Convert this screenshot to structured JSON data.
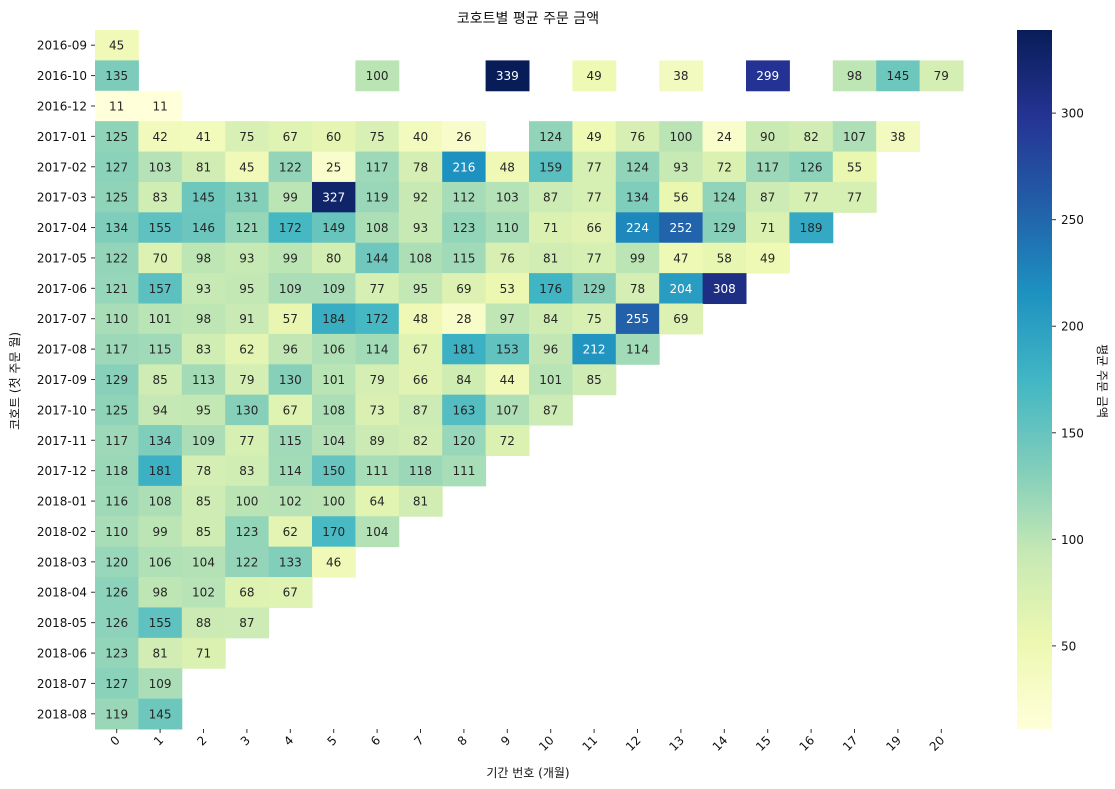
{
  "chart_data": {
    "type": "heatmap",
    "title": "코호트별 평균 주문 금액",
    "xlabel": "기간 번호 (개월)",
    "ylabel": "코호트 (첫 주문 월)",
    "colorbar_label": "평균 주문 금액",
    "colormap": "YlGnBu",
    "value_range": [
      11,
      339
    ],
    "colorbar_ticks": [
      50,
      100,
      150,
      200,
      250,
      300
    ],
    "x": [
      "0",
      "1",
      "2",
      "3",
      "4",
      "5",
      "6",
      "7",
      "8",
      "9",
      "10",
      "11",
      "12",
      "13",
      "14",
      "15",
      "16",
      "17",
      "19",
      "20"
    ],
    "y": [
      "2016-09",
      "2016-10",
      "2016-12",
      "2017-01",
      "2017-02",
      "2017-03",
      "2017-04",
      "2017-05",
      "2017-06",
      "2017-07",
      "2017-08",
      "2017-09",
      "2017-10",
      "2017-11",
      "2017-12",
      "2018-01",
      "2018-02",
      "2018-03",
      "2018-04",
      "2018-05",
      "2018-06",
      "2018-07",
      "2018-08"
    ],
    "values": [
      [
        45,
        null,
        null,
        null,
        null,
        null,
        null,
        null,
        null,
        null,
        null,
        null,
        null,
        null,
        null,
        null,
        null,
        null,
        null,
        null
      ],
      [
        135,
        null,
        null,
        null,
        null,
        null,
        100,
        null,
        null,
        339,
        null,
        49,
        null,
        38,
        null,
        299,
        null,
        98,
        145,
        79
      ],
      [
        11,
        11,
        null,
        null,
        null,
        null,
        null,
        null,
        null,
        null,
        null,
        null,
        null,
        null,
        null,
        null,
        null,
        null,
        null,
        null
      ],
      [
        125,
        42,
        41,
        75,
        67,
        60,
        75,
        40,
        26,
        null,
        124,
        49,
        76,
        100,
        24,
        90,
        82,
        107,
        38,
        null
      ],
      [
        127,
        103,
        81,
        45,
        122,
        25,
        117,
        78,
        216,
        48,
        159,
        77,
        124,
        93,
        72,
        117,
        126,
        55,
        null,
        null
      ],
      [
        125,
        83,
        145,
        131,
        99,
        327,
        119,
        92,
        112,
        103,
        87,
        77,
        134,
        56,
        124,
        87,
        77,
        77,
        null,
        null
      ],
      [
        134,
        155,
        146,
        121,
        172,
        149,
        108,
        93,
        123,
        110,
        71,
        66,
        224,
        252,
        129,
        71,
        189,
        null,
        null,
        null
      ],
      [
        122,
        70,
        98,
        93,
        99,
        80,
        144,
        108,
        115,
        76,
        81,
        77,
        99,
        47,
        58,
        49,
        null,
        null,
        null,
        null
      ],
      [
        121,
        157,
        93,
        95,
        109,
        109,
        77,
        95,
        69,
        53,
        176,
        129,
        78,
        204,
        308,
        null,
        null,
        null,
        null,
        null
      ],
      [
        110,
        101,
        98,
        91,
        57,
        184,
        172,
        48,
        28,
        97,
        84,
        75,
        255,
        69,
        null,
        null,
        null,
        null,
        null,
        null
      ],
      [
        117,
        115,
        83,
        62,
        96,
        106,
        114,
        67,
        181,
        153,
        96,
        212,
        114,
        null,
        null,
        null,
        null,
        null,
        null,
        null
      ],
      [
        129,
        85,
        113,
        79,
        130,
        101,
        79,
        66,
        84,
        44,
        101,
        85,
        null,
        null,
        null,
        null,
        null,
        null,
        null,
        null
      ],
      [
        125,
        94,
        95,
        130,
        67,
        108,
        73,
        87,
        163,
        107,
        87,
        null,
        null,
        null,
        null,
        null,
        null,
        null,
        null,
        null
      ],
      [
        117,
        134,
        109,
        77,
        115,
        104,
        89,
        82,
        120,
        72,
        null,
        null,
        null,
        null,
        null,
        null,
        null,
        null,
        null,
        null
      ],
      [
        118,
        181,
        78,
        83,
        114,
        150,
        111,
        118,
        111,
        null,
        null,
        null,
        null,
        null,
        null,
        null,
        null,
        null,
        null,
        null
      ],
      [
        116,
        108,
        85,
        100,
        102,
        100,
        64,
        81,
        null,
        null,
        null,
        null,
        null,
        null,
        null,
        null,
        null,
        null,
        null,
        null
      ],
      [
        110,
        99,
        85,
        123,
        62,
        170,
        104,
        null,
        null,
        null,
        null,
        null,
        null,
        null,
        null,
        null,
        null,
        null,
        null,
        null
      ],
      [
        120,
        106,
        104,
        122,
        133,
        46,
        null,
        null,
        null,
        null,
        null,
        null,
        null,
        null,
        null,
        null,
        null,
        null,
        null,
        null
      ],
      [
        126,
        98,
        102,
        68,
        67,
        null,
        null,
        null,
        null,
        null,
        null,
        null,
        null,
        null,
        null,
        null,
        null,
        null,
        null,
        null
      ],
      [
        126,
        155,
        88,
        87,
        null,
        null,
        null,
        null,
        null,
        null,
        null,
        null,
        null,
        null,
        null,
        null,
        null,
        null,
        null,
        null
      ],
      [
        123,
        81,
        71,
        null,
        null,
        null,
        null,
        null,
        null,
        null,
        null,
        null,
        null,
        null,
        null,
        null,
        null,
        null,
        null,
        null
      ],
      [
        127,
        109,
        null,
        null,
        null,
        null,
        null,
        null,
        null,
        null,
        null,
        null,
        null,
        null,
        null,
        null,
        null,
        null,
        null,
        null
      ],
      [
        119,
        145,
        null,
        null,
        null,
        null,
        null,
        null,
        null,
        null,
        null,
        null,
        null,
        null,
        null,
        null,
        null,
        null,
        null,
        null
      ]
    ]
  }
}
